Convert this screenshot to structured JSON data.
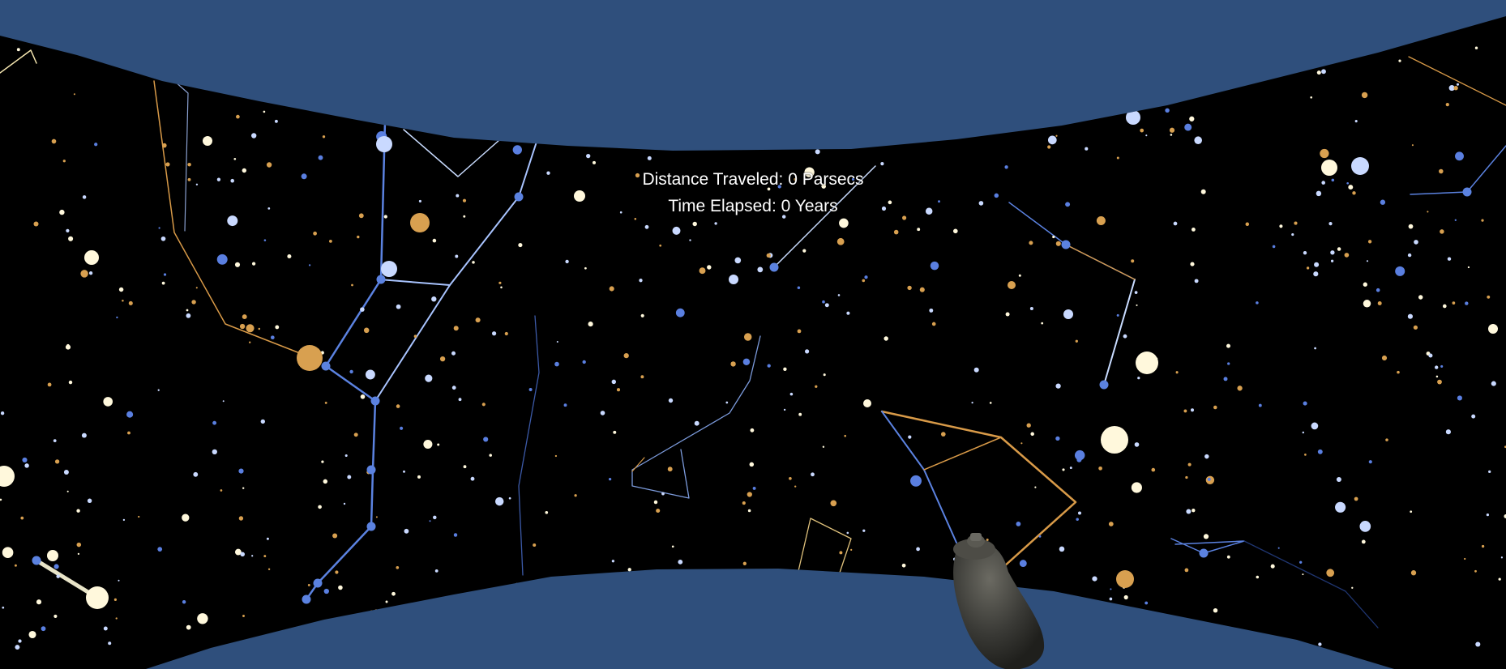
{
  "hud": {
    "distance_line": "Distance Traveled: 0 Parsecs",
    "time_line": "Time Elapsed: 0 Years"
  },
  "colors": {
    "environment": "#2f4f7c",
    "sky": "#000000",
    "star_white": "#fff8dc",
    "star_blue": "#c9d9ff",
    "star_orange": "#d8a050",
    "star_deep_blue": "#5a7fe0",
    "line_blue": "#5b82e0",
    "line_pale": "#c9dcff",
    "line_orange": "#d89a48",
    "controller": "#3a3a36"
  }
}
